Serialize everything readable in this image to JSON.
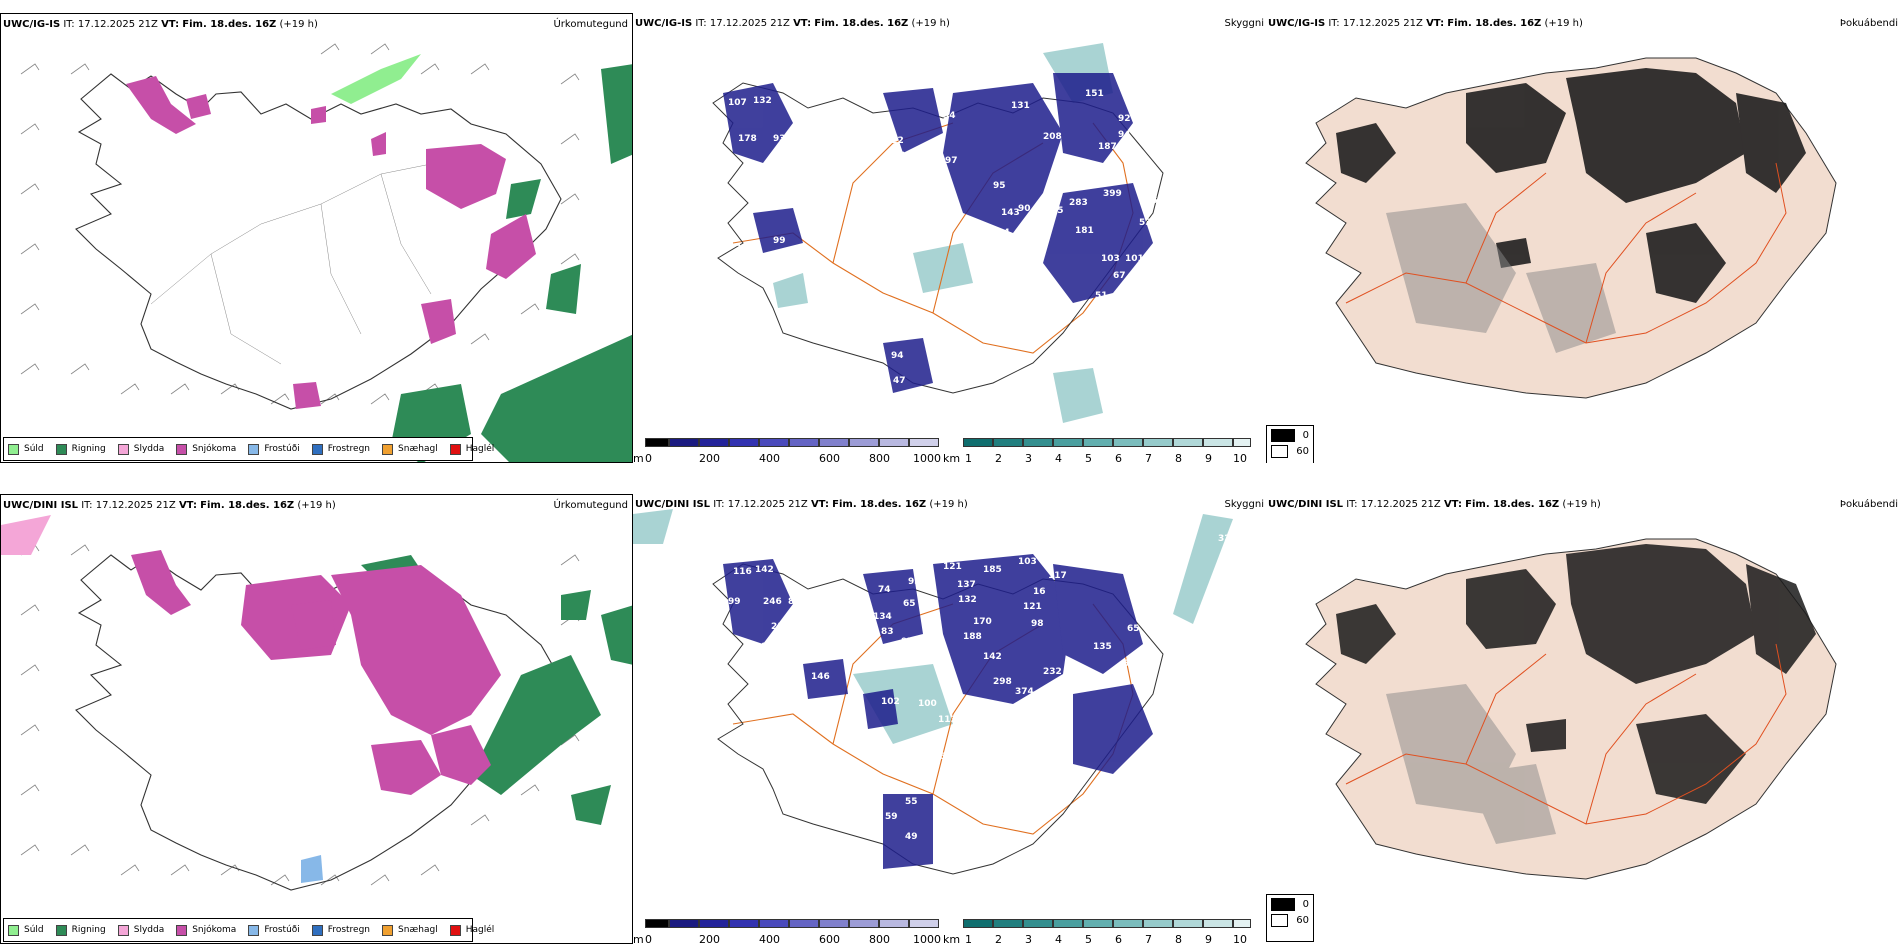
{
  "rows": [
    {
      "model": "UWC/IG-IS",
      "it_label": "IT:",
      "it_value": "17.12.2025 21Z",
      "vt_label": "VT:",
      "vt_value": "Fim. 18.des. 16Z",
      "lead": "(+19 h)",
      "precip_title": "Úrkomutegund",
      "cloud_title": "Skyggni",
      "fog_title": "Þokuábendi",
      "cloud_labels": [
        "107",
        "132",
        "178",
        "93",
        "126",
        "76",
        "155",
        "52",
        "99",
        "122",
        "83",
        "34",
        "97",
        "82",
        "95",
        "143",
        "104",
        "90",
        "208",
        "145",
        "187",
        "92",
        "94",
        "283",
        "399",
        "56",
        "53",
        "103",
        "101",
        "67",
        "51",
        "58",
        "112",
        "94",
        "47",
        "131",
        "151",
        "41",
        "10",
        "181",
        "65"
      ]
    },
    {
      "model": "UWC/DINI ISL",
      "it_label": "IT:",
      "it_value": "17.12.2025 21Z",
      "vt_label": "VT:",
      "vt_value": "Fim. 18.des. 16Z",
      "lead": "(+19 h)",
      "precip_title": "Úrkomutegund",
      "cloud_title": "Skyggni",
      "fog_title": "Þokuábendi",
      "cloud_labels": [
        "116",
        "142",
        "99",
        "246",
        "80",
        "211",
        "97",
        "61",
        "146",
        "84",
        "158",
        "74",
        "93",
        "65",
        "134",
        "83",
        "97",
        "147",
        "121",
        "137",
        "185",
        "103",
        "117",
        "132",
        "170",
        "16",
        "98",
        "121",
        "188",
        "142",
        "232",
        "135",
        "65",
        "54",
        "70",
        "61",
        "298",
        "374",
        "457",
        "113",
        "210",
        "269",
        "26",
        "165",
        "59",
        "55",
        "49",
        "102",
        "100",
        "326"
      ]
    }
  ],
  "precip_legend": [
    {
      "label": "Súld",
      "color": "#90ee90"
    },
    {
      "label": "Rigning",
      "color": "#2e8b57"
    },
    {
      "label": "Slydda",
      "color": "#f4a6d7"
    },
    {
      "label": "Snjókoma",
      "color": "#c64fa8"
    },
    {
      "label": "Frostúði",
      "color": "#87b8e8"
    },
    {
      "label": "Frostregn",
      "color": "#2f6fbf"
    },
    {
      "label": "Snæhagl",
      "color": "#f0a030"
    },
    {
      "label": "Haglél",
      "color": "#e01010"
    }
  ],
  "cloud_base_bar": {
    "unit": "m",
    "ticks": [
      "0",
      "200",
      "400",
      "600",
      "800",
      "1000"
    ],
    "colors": [
      "#000000",
      "#1a1a80",
      "#23239a",
      "#3232b0",
      "#4a4abc",
      "#6464c4",
      "#8080cc",
      "#9c9cd6",
      "#b8b8e0",
      "#d0d0ea"
    ]
  },
  "visibility_bar": {
    "unit": "km",
    "ticks": [
      "1",
      "2",
      "3",
      "4",
      "5",
      "6",
      "7",
      "8",
      "9",
      "10"
    ],
    "colors": [
      "#0f6e6e",
      "#217f7f",
      "#348f8f",
      "#4a9f9f",
      "#62afaf",
      "#7bbdbd",
      "#96cbcb",
      "#b0d8d8",
      "#cae5e5",
      "#e4f2f2"
    ]
  },
  "fog_legend": [
    {
      "label": "0",
      "color": "#000000"
    },
    {
      "label": "60",
      "color": "#ffffff"
    }
  ]
}
